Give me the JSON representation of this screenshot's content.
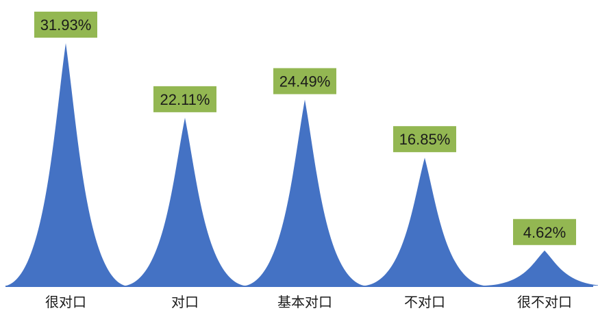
{
  "chart_data": {
    "type": "area",
    "categories": [
      "很对口",
      "对口",
      "基本对口",
      "不对口",
      "很不对口"
    ],
    "values": [
      31.93,
      22.11,
      24.49,
      16.85,
      4.62
    ],
    "value_labels": [
      "31.93%",
      "22.11%",
      "24.49%",
      "16.85%",
      "4.62%"
    ],
    "unit": "%",
    "ylim": [
      0,
      31.93
    ],
    "grid": false,
    "legend": "none",
    "colors": {
      "peak_fill": "#4472C4",
      "label_box": "#93B752",
      "baseline": "#4472C4"
    }
  }
}
